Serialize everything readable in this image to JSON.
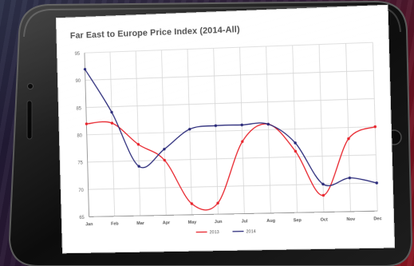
{
  "colors": {
    "series_2013": "#e8242c",
    "series_2014": "#2a2a7a",
    "grid": "#d6d6d6",
    "phone_frame": "#141414"
  },
  "device": {
    "camera_icon": "camera-icon",
    "speaker_icon": "speaker-icon",
    "home_button_icon": "home-button-icon"
  },
  "chart_data": {
    "type": "line",
    "title": "Far East to Europe Price Index (2014-All)",
    "xlabel": "",
    "ylabel": "",
    "categories": [
      "Jan",
      "Feb",
      "Mar",
      "Apr",
      "May",
      "Jun",
      "Jul",
      "Aug",
      "Sep",
      "Oct",
      "Nov",
      "Dec"
    ],
    "ylim": [
      65,
      95
    ],
    "yticks": [
      "65",
      "70",
      "75",
      "80",
      "85",
      "90",
      "95"
    ],
    "grid": true,
    "legend_position": "bottom-center",
    "series": [
      {
        "name": "2013",
        "color": "#e8242c",
        "values": [
          82,
          82,
          78,
          75,
          67,
          67,
          78,
          81,
          76,
          68,
          78,
          80
        ]
      },
      {
        "name": "2014",
        "color": "#2a2a7a",
        "values": [
          92,
          84,
          74,
          77,
          80.5,
          81,
          81,
          81,
          77.5,
          70,
          71,
          70
        ]
      }
    ]
  }
}
